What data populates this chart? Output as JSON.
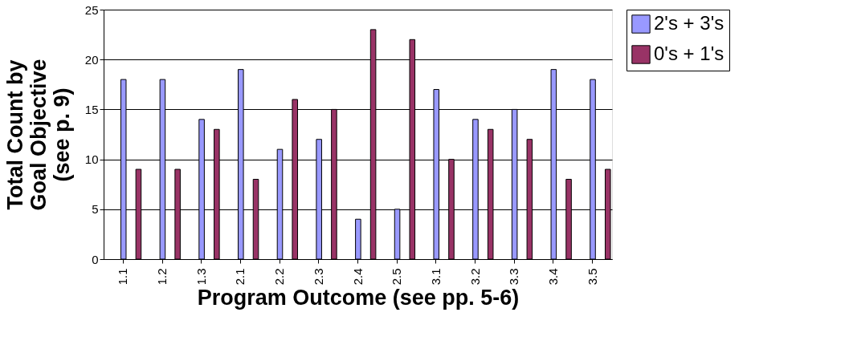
{
  "chart_data": {
    "type": "bar",
    "xlabel": "Program Outcome (see pp. 5-6)",
    "ylabel": "Total Count by\nGoal Objective\n(see p. 9)",
    "categories": [
      "1.1",
      "1.2",
      "1.3",
      "2.1",
      "2.2",
      "2.3",
      "2.4",
      "2.5",
      "3.1",
      "3.2",
      "3.3",
      "3.4",
      "3.5"
    ],
    "series": [
      {
        "name": "2's + 3's",
        "color": "#9999ff",
        "values": [
          18,
          18,
          14,
          19,
          11,
          12,
          4,
          5,
          17,
          14,
          15,
          19,
          18
        ]
      },
      {
        "name": "0's + 1's",
        "color": "#993366",
        "values": [
          9,
          9,
          13,
          8,
          16,
          15,
          23,
          22,
          10,
          13,
          12,
          8,
          9
        ]
      }
    ],
    "ylim": [
      0,
      25
    ],
    "yticks": [
      0,
      5,
      10,
      15,
      20,
      25
    ],
    "grid": "y",
    "legend": "right"
  }
}
